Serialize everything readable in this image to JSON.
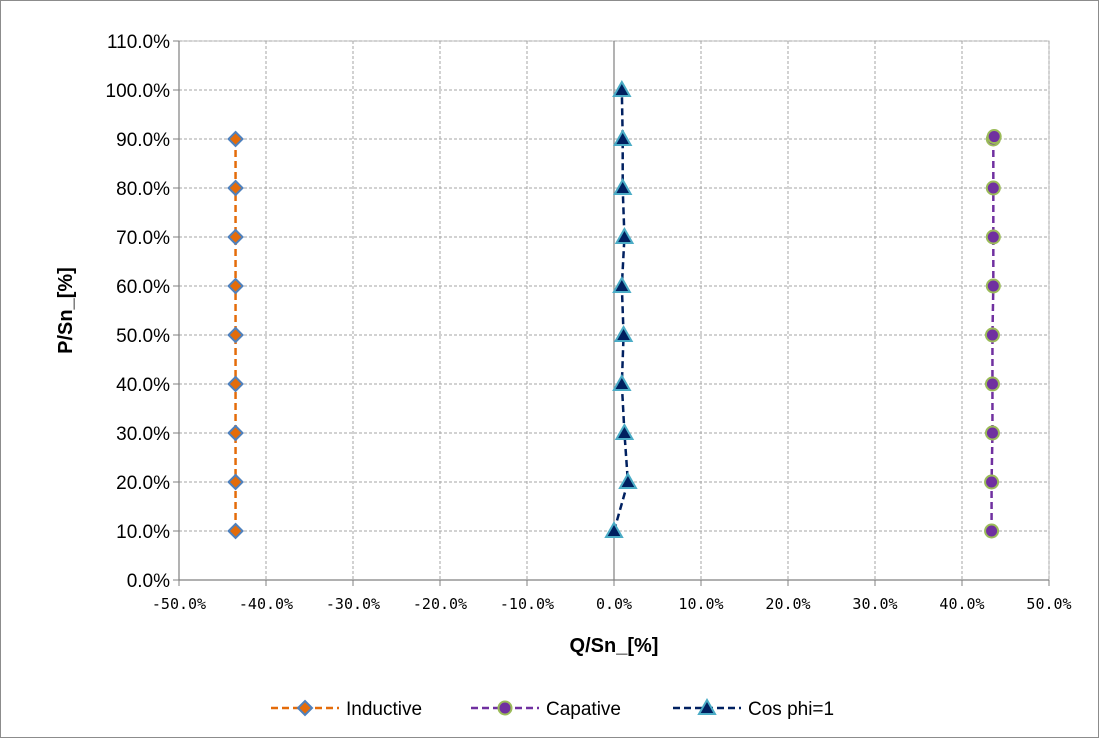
{
  "chart_data": {
    "type": "scatter",
    "title": "",
    "xlabel": "Q/Sn_[%]",
    "ylabel": "P/Sn_[%]",
    "xlim": [
      -0.5,
      0.5
    ],
    "ylim": [
      0,
      1.1
    ],
    "x_ticks": [
      -0.5,
      -0.4,
      -0.3,
      -0.2,
      -0.1,
      0.0,
      0.1,
      0.2,
      0.3,
      0.4,
      0.5
    ],
    "x_tick_labels": [
      "-50.0%",
      "-40.0%",
      "-30.0%",
      "-20.0%",
      "-10.0%",
      "0.0%",
      "10.0%",
      "20.0%",
      "30.0%",
      "40.0%",
      "50.0%"
    ],
    "y_ticks": [
      0,
      0.1,
      0.2,
      0.3,
      0.4,
      0.5,
      0.6,
      0.7,
      0.8,
      0.9,
      1.0,
      1.1
    ],
    "y_tick_labels": [
      "0.0%",
      "10.0%",
      "20.0%",
      "30.0%",
      "40.0%",
      "50.0%",
      "60.0%",
      "70.0%",
      "80.0%",
      "90.0%",
      "100.0%",
      "110.0%"
    ],
    "grid": true,
    "legend_position": "bottom",
    "series": [
      {
        "name": "Inductive",
        "color": "#e46c0a",
        "marker": "diamond",
        "marker_fill": "#e46c0a",
        "marker_stroke": "#4f81bd",
        "line_style": "dashed",
        "points": [
          {
            "x": -0.435,
            "y": 0.1
          },
          {
            "x": -0.435,
            "y": 0.2
          },
          {
            "x": -0.435,
            "y": 0.3
          },
          {
            "x": -0.435,
            "y": 0.4
          },
          {
            "x": -0.435,
            "y": 0.5
          },
          {
            "x": -0.435,
            "y": 0.6
          },
          {
            "x": -0.435,
            "y": 0.7
          },
          {
            "x": -0.435,
            "y": 0.8
          },
          {
            "x": -0.435,
            "y": 0.9
          }
        ]
      },
      {
        "name": "Capative",
        "color": "#7030a0",
        "marker": "circle",
        "marker_fill": "#7030a0",
        "marker_stroke": "#9bbb59",
        "line_style": "dashed",
        "points": [
          {
            "x": 0.434,
            "y": 0.1
          },
          {
            "x": 0.434,
            "y": 0.2
          },
          {
            "x": 0.435,
            "y": 0.3
          },
          {
            "x": 0.435,
            "y": 0.4
          },
          {
            "x": 0.435,
            "y": 0.5
          },
          {
            "x": 0.436,
            "y": 0.6
          },
          {
            "x": 0.436,
            "y": 0.7
          },
          {
            "x": 0.436,
            "y": 0.8
          },
          {
            "x": 0.436,
            "y": 0.9
          },
          {
            "x": 0.437,
            "y": 0.905
          }
        ]
      },
      {
        "name": "Cos phi=1",
        "color": "#002060",
        "marker": "triangle",
        "marker_fill": "#002060",
        "marker_stroke": "#4bacc6",
        "line_style": "dashed",
        "points": [
          {
            "x": 0.0,
            "y": 0.1
          },
          {
            "x": 0.016,
            "y": 0.2
          },
          {
            "x": 0.012,
            "y": 0.3
          },
          {
            "x": 0.009,
            "y": 0.4
          },
          {
            "x": 0.011,
            "y": 0.5
          },
          {
            "x": 0.009,
            "y": 0.6
          },
          {
            "x": 0.012,
            "y": 0.7
          },
          {
            "x": 0.01,
            "y": 0.8
          },
          {
            "x": 0.01,
            "y": 0.9
          },
          {
            "x": 0.009,
            "y": 1.0
          }
        ]
      }
    ]
  }
}
